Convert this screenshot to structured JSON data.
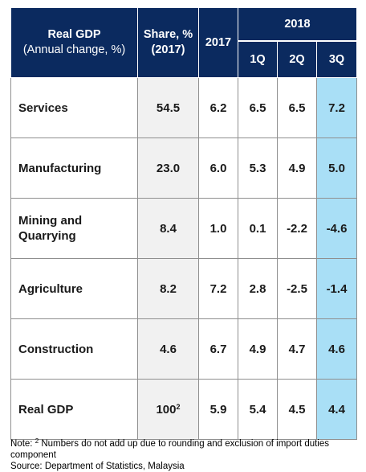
{
  "chart_data": {
    "type": "table",
    "header": {
      "sector_title": "Real GDP",
      "sector_subtitle": "(Annual change, %)",
      "share_title": "Share, %",
      "share_subtitle": "(2017)",
      "col_2017": "2017",
      "group_2018": "2018",
      "q1": "1Q",
      "q2": "2Q",
      "q3": "3Q"
    },
    "rows": [
      {
        "sector": "Services",
        "share": "54.5",
        "share_sup": "",
        "y2017": "6.2",
        "q1": "6.5",
        "q2": "6.5",
        "q3": "7.2"
      },
      {
        "sector": "Manufacturing",
        "share": "23.0",
        "share_sup": "",
        "y2017": "6.0",
        "q1": "5.3",
        "q2": "4.9",
        "q3": "5.0"
      },
      {
        "sector": "Mining and Quarrying",
        "share": "8.4",
        "share_sup": "",
        "y2017": "1.0",
        "q1": "0.1",
        "q2": "-2.2",
        "q3": "-4.6"
      },
      {
        "sector": "Agriculture",
        "share": "8.2",
        "share_sup": "",
        "y2017": "7.2",
        "q1": "2.8",
        "q2": "-2.5",
        "q3": "-1.4"
      },
      {
        "sector": "Construction",
        "share": "4.6",
        "share_sup": "",
        "y2017": "6.7",
        "q1": "4.9",
        "q2": "4.7",
        "q3": "4.6"
      },
      {
        "sector": "Real GDP",
        "share": "100",
        "share_sup": "2",
        "y2017": "5.9",
        "q1": "5.4",
        "q2": "4.5",
        "q3": "4.4"
      }
    ],
    "highlight_column": "3Q",
    "colors": {
      "header_bg": "#0b2a5f",
      "header_text": "#ffffff",
      "share_bg": "#f1f1f1",
      "q3_bg": "#a9dff6",
      "grid": "#8f8f8f"
    }
  },
  "notes": {
    "note_prefix": "Note:",
    "note_sup": "2",
    "note_text": "Numbers do not add up due to rounding and exclusion of import duties component",
    "source": "Source: Department of Statistics, Malaysia"
  }
}
